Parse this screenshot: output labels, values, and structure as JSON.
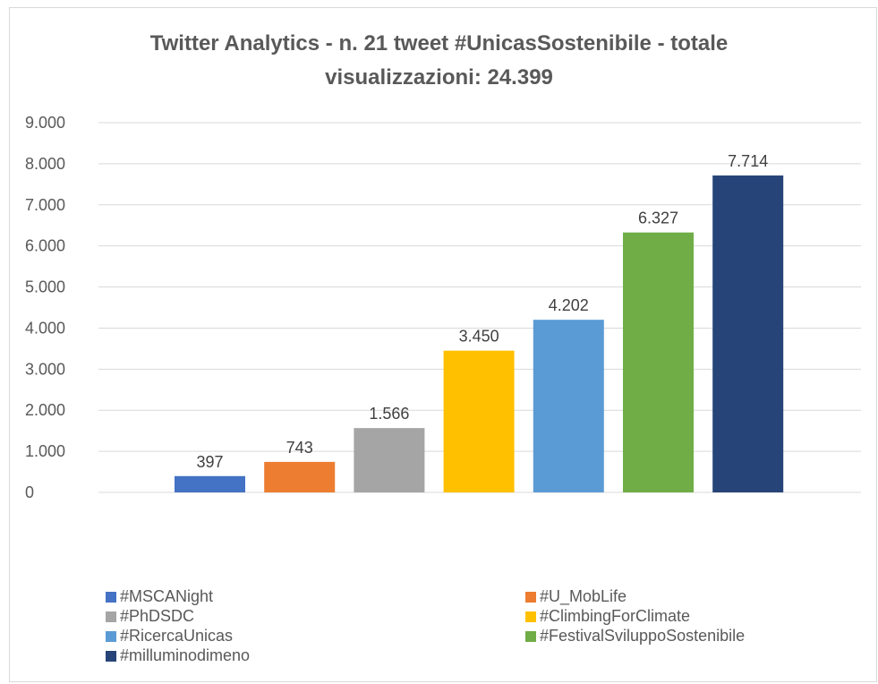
{
  "chart_data": {
    "type": "bar",
    "title": "Twitter Analytics - n. 21 tweet #UnicasSostenibile - totale visualizzazioni: 24.399",
    "title_lines": [
      "Twitter Analytics - n. 21 tweet #UnicasSostenibile - totale",
      "visualizzazioni: 24.399"
    ],
    "xlabel": "",
    "ylabel": "",
    "ylim": [
      0,
      9000
    ],
    "yticks": [
      0,
      1000,
      2000,
      3000,
      4000,
      5000,
      6000,
      7000,
      8000,
      9000
    ],
    "ytick_labels": [
      "0",
      "1.000",
      "2.000",
      "3.000",
      "4.000",
      "5.000",
      "6.000",
      "7.000",
      "8.000",
      "9.000"
    ],
    "grid": true,
    "legend_position": "bottom",
    "series": [
      {
        "name": "#MSCANight",
        "values": [
          397
        ],
        "label": "397",
        "color": "#4472c4"
      },
      {
        "name": "#U_MobLife",
        "values": [
          743
        ],
        "label": "743",
        "color": "#ed7d31"
      },
      {
        "name": "#PhDSDC",
        "values": [
          1566
        ],
        "label": "1.566",
        "color": "#a5a5a5"
      },
      {
        "name": "#ClimbingForClimate",
        "values": [
          3450
        ],
        "label": "3.450",
        "color": "#ffc000"
      },
      {
        "name": "#RicercaUnicas",
        "values": [
          4202
        ],
        "label": "4.202",
        "color": "#5b9bd5"
      },
      {
        "name": "#FestivalSviluppoSostenibile",
        "values": [
          6327
        ],
        "label": "6.327",
        "color": "#70ad47"
      },
      {
        "name": "#milluminodimeno",
        "values": [
          7714
        ],
        "label": "7.714",
        "color": "#264478"
      }
    ]
  }
}
